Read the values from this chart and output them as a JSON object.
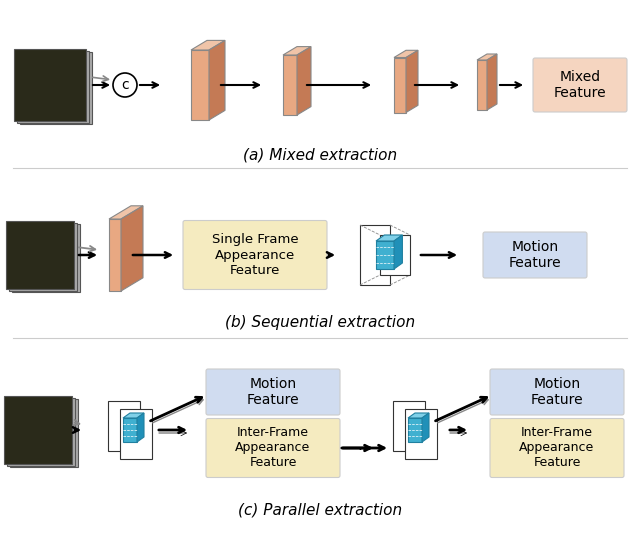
{
  "title": "",
  "bg_color": "#ffffff",
  "section_a_label": "(a) Mixed extraction",
  "section_b_label": "(b) Sequential extraction",
  "section_c_label": "(c) Parallel extraction",
  "mixed_feature_label": "Mixed\nFeature",
  "motion_feature_label": "Motion\nFeature",
  "single_frame_label": "Single Frame\nAppearance\nFeature",
  "inter_frame_label": "Inter-Frame\nAppearance\nFeature",
  "motion_feature_label2": "Motion\nFeature",
  "inter_frame_label2": "Inter-Frame\nAppearance\nFeature",
  "conv_color_face": "#E8A882",
  "conv_color_side": "#C47A55",
  "conv_color_top": "#F0C4A8",
  "feature_box_mixed": "#F5D5C0",
  "feature_box_motion": "#D0DCF0",
  "feature_box_single": "#F5EBC0",
  "feature_box_interframe": "#F5EBC0",
  "attn_color": "#40B0D0",
  "label_fontsize": 12,
  "sublabel_fontsize": 12
}
